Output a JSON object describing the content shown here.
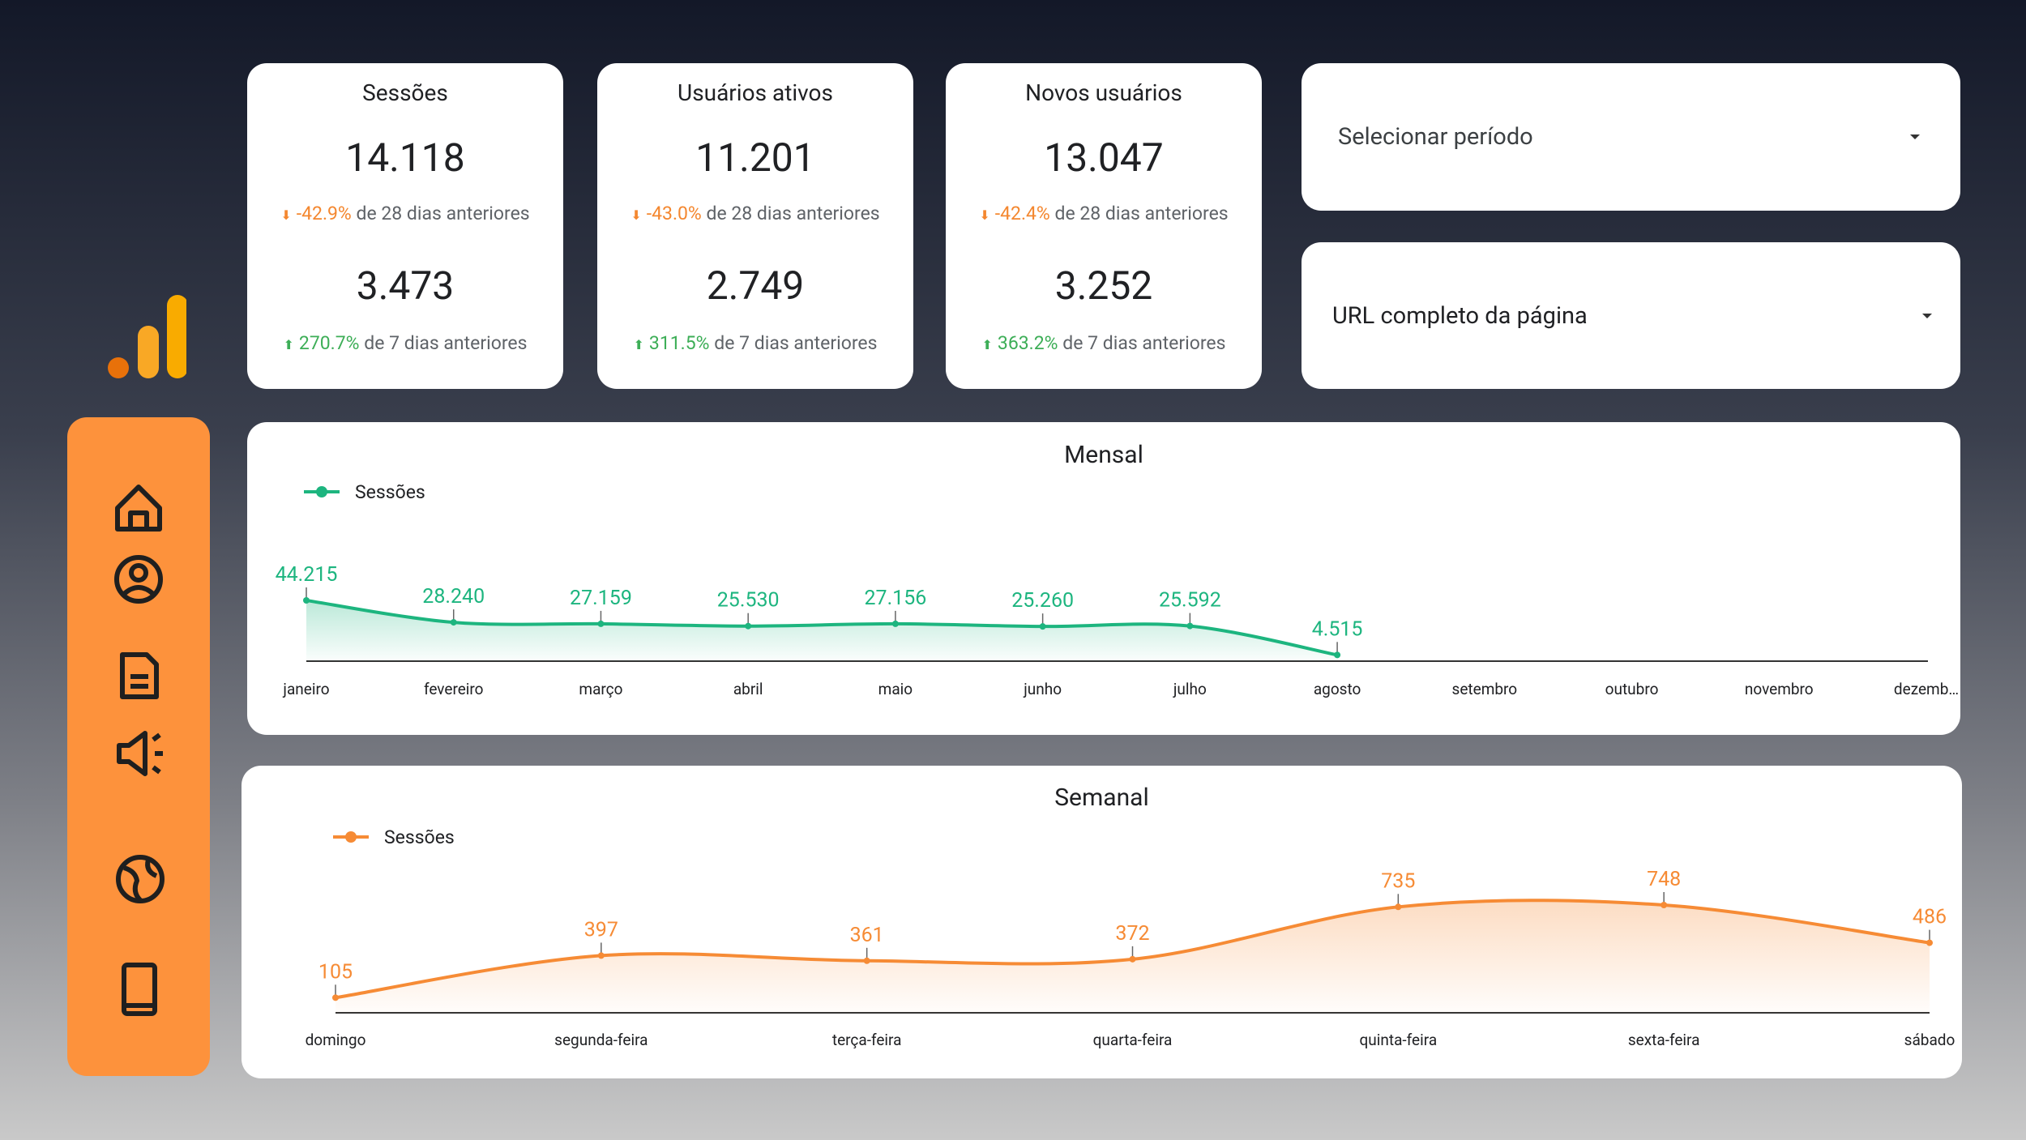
{
  "kpis": [
    {
      "title": "Sessões",
      "value": "14.118",
      "change": "-42.9%",
      "period": "de 28 dias anteriores",
      "value2": "3.473",
      "change2": "270.7%",
      "period2": "de 7 dias anteriores"
    },
    {
      "title": "Usuários ativos",
      "value": "11.201",
      "change": "-43.0%",
      "period": "de 28 dias anteriores",
      "value2": "2.749",
      "change2": "311.5%",
      "period2": "de 7 dias anteriores"
    },
    {
      "title": "Novos usuários",
      "value": "13.047",
      "change": "-42.4%",
      "period": "de 28 dias anteriores",
      "value2": "3.252",
      "change2": "363.2%",
      "period2": "de 7 dias anteriores"
    }
  ],
  "filters": [
    "Selecionar período",
    "URL completo da página"
  ],
  "chart_data": [
    {
      "type": "line",
      "title": "Mensal",
      "categories": [
        "janeiro",
        "fevereiro",
        "março",
        "abril",
        "maio",
        "junho",
        "julho",
        "agosto",
        "setembro",
        "outubro",
        "novembro",
        "dezemb…"
      ],
      "series": [
        {
          "name": "Sessões",
          "color": "#1db57f",
          "values": [
            44215,
            28240,
            27159,
            25530,
            27156,
            25260,
            25592,
            4515,
            null,
            null,
            null,
            null
          ],
          "value_labels": [
            "44.215",
            "28.240",
            "27.159",
            "25.530",
            "27.156",
            "25.260",
            "25.592",
            "4.515",
            null,
            null,
            null,
            null
          ]
        }
      ]
    },
    {
      "type": "line",
      "title": "Semanal",
      "categories": [
        "domingo",
        "segunda-feira",
        "terça-feira",
        "quarta-feira",
        "quinta-feira",
        "sexta-feira",
        "sábado"
      ],
      "series": [
        {
          "name": "Sessões",
          "color": "#f68b35",
          "values": [
            105,
            397,
            361,
            372,
            735,
            748,
            486
          ]
        }
      ]
    }
  ]
}
